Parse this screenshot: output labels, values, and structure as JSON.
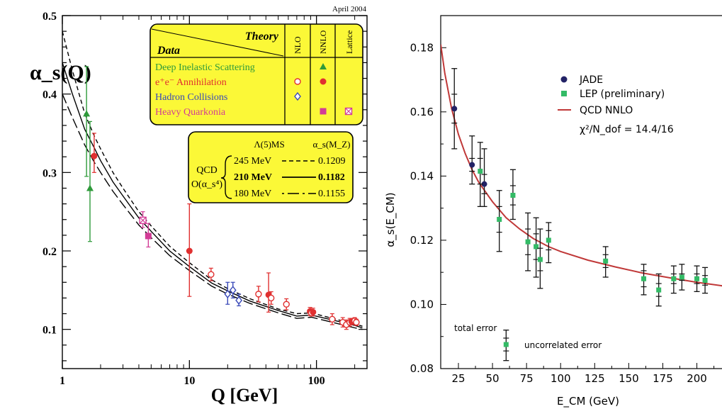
{
  "chart_data": [
    {
      "type": "scatter",
      "corner_note": "April 2004",
      "ylabel": "α_s(Q)",
      "xlabel": "Q [GeV]",
      "xscale": "log",
      "xlim": [
        1,
        250
      ],
      "ylim": [
        0.05,
        0.5
      ],
      "x_ticks": [
        1,
        10,
        100
      ],
      "x_tick_labels": [
        "1",
        "10",
        "100"
      ],
      "y_ticks": [
        0.1,
        0.2,
        0.3,
        0.4,
        0.5
      ],
      "y_tick_labels": [
        "0.1",
        "0.2",
        "0.3",
        "0.4",
        "0.5"
      ],
      "legend": {
        "placement": "top-right",
        "header_left": "Data",
        "header_right": "Theory",
        "columns": [
          "NLO",
          "NNLO",
          "Lattice"
        ],
        "rows": [
          {
            "label": "Deep Inelastic Scattering",
            "color": "#2e9a3a",
            "marks": [
              "",
              "triangle",
              ""
            ]
          },
          {
            "label": "e⁺e⁻ Annihilation",
            "color": "#e03030",
            "marks": [
              "open-circle",
              "filled-circle",
              ""
            ]
          },
          {
            "label": "Hadron Collisions",
            "color": "#3848b8",
            "marks": [
              "open-diamond",
              "",
              ""
            ]
          },
          {
            "label": "Heavy Quarkonia",
            "color": "#d23c96",
            "marks": [
              "",
              "filled-square",
              "crossed-square"
            ]
          }
        ]
      },
      "qcd_box": {
        "lambda_header": "Λ(5)MS",
        "alpha_header": "α_s(M_Z)",
        "label_1": "QCD",
        "label_2": "O(α_s⁴)",
        "rows": [
          {
            "lambda": "245 MeV",
            "alpha": "0.1209",
            "style": "dashed"
          },
          {
            "lambda": "210 MeV",
            "alpha": "0.1182",
            "style": "solid"
          },
          {
            "lambda": "180 MeV",
            "alpha": "0.1155",
            "style": "longdash"
          }
        ]
      },
      "curves": [
        {
          "name": "245 MeV",
          "style": "dashed",
          "x": [
            1.0,
            1.2,
            1.5,
            1.8,
            2.0,
            2.5,
            3.0,
            4.0,
            5.0,
            7.0,
            10.0,
            15.0,
            20.0,
            30.0,
            50.0,
            70.0,
            91.2,
            150.0,
            200.0,
            230.0
          ],
          "y": [
            0.48,
            0.43,
            0.375,
            0.345,
            0.33,
            0.3,
            0.28,
            0.25,
            0.232,
            0.206,
            0.185,
            0.163,
            0.152,
            0.139,
            0.126,
            0.12,
            0.1209,
            0.112,
            0.107,
            0.104
          ]
        },
        {
          "name": "210 MeV",
          "style": "solid",
          "x": [
            1.0,
            1.2,
            1.5,
            1.8,
            2.0,
            2.5,
            3.0,
            4.0,
            5.0,
            7.0,
            10.0,
            15.0,
            20.0,
            30.0,
            50.0,
            70.0,
            91.2,
            150.0,
            200.0,
            230.0
          ],
          "y": [
            0.44,
            0.4,
            0.355,
            0.33,
            0.315,
            0.288,
            0.27,
            0.242,
            0.225,
            0.2,
            0.18,
            0.159,
            0.149,
            0.136,
            0.124,
            0.117,
            0.1182,
            0.11,
            0.105,
            0.102
          ]
        },
        {
          "name": "180 MeV",
          "style": "longdash",
          "x": [
            1.0,
            1.2,
            1.5,
            1.8,
            2.0,
            2.5,
            3.0,
            4.0,
            5.0,
            7.0,
            10.0,
            15.0,
            20.0,
            30.0,
            50.0,
            70.0,
            91.2,
            150.0,
            200.0,
            230.0
          ],
          "y": [
            0.4,
            0.37,
            0.335,
            0.312,
            0.3,
            0.276,
            0.259,
            0.233,
            0.217,
            0.194,
            0.175,
            0.155,
            0.145,
            0.133,
            0.121,
            0.114,
            0.1155,
            0.107,
            0.102,
            0.1
          ]
        }
      ],
      "points": [
        {
          "x": 1.55,
          "y": 0.375,
          "lo": 0.295,
          "hi": 0.435,
          "color": "#2e9a3a",
          "marker": "triangle"
        },
        {
          "x": 1.65,
          "y": 0.28,
          "lo": 0.212,
          "hi": 0.365,
          "color": "#2e9a3a",
          "marker": "triangle"
        },
        {
          "x": 1.78,
          "y": 0.321,
          "lo": 0.3,
          "hi": 0.35,
          "color": "#e03030",
          "marker": "filled-circle"
        },
        {
          "x": 4.3,
          "y": 0.239,
          "lo": 0.23,
          "hi": 0.25,
          "color": "#d23c96",
          "marker": "crossed-square"
        },
        {
          "x": 4.75,
          "y": 0.219,
          "lo": 0.205,
          "hi": 0.235,
          "color": "#d23c96",
          "marker": "filled-square"
        },
        {
          "x": 10.0,
          "y": 0.2,
          "lo": 0.142,
          "hi": 0.26,
          "color": "#e03030",
          "marker": "filled-circle"
        },
        {
          "x": 14.8,
          "y": 0.17,
          "lo": 0.162,
          "hi": 0.178,
          "color": "#e03030",
          "marker": "open-circle"
        },
        {
          "x": 20.0,
          "y": 0.145,
          "lo": 0.132,
          "hi": 0.16,
          "color": "#3848b8",
          "marker": "open-diamond"
        },
        {
          "x": 22.0,
          "y": 0.15,
          "lo": 0.14,
          "hi": 0.16,
          "color": "#3848b8",
          "marker": "open-diamond"
        },
        {
          "x": 24.5,
          "y": 0.137,
          "lo": 0.13,
          "hi": 0.145,
          "color": "#3848b8",
          "marker": "open-diamond"
        },
        {
          "x": 35.0,
          "y": 0.145,
          "lo": 0.135,
          "hi": 0.155,
          "color": "#e03030",
          "marker": "open-circle"
        },
        {
          "x": 42.0,
          "y": 0.144,
          "lo": 0.122,
          "hi": 0.172,
          "color": "#e03030",
          "marker": "filled-circle"
        },
        {
          "x": 44.0,
          "y": 0.14,
          "lo": 0.132,
          "hi": 0.148,
          "color": "#e03030",
          "marker": "open-circle"
        },
        {
          "x": 58.0,
          "y": 0.132,
          "lo": 0.125,
          "hi": 0.139,
          "color": "#e03030",
          "marker": "open-circle"
        },
        {
          "x": 89.0,
          "y": 0.123,
          "lo": 0.118,
          "hi": 0.128,
          "color": "#e03030",
          "marker": "filled-circle"
        },
        {
          "x": 91.2,
          "y": 0.121,
          "lo": 0.117,
          "hi": 0.125,
          "color": "#e03030",
          "marker": "open-circle"
        },
        {
          "x": 94.0,
          "y": 0.122,
          "lo": 0.117,
          "hi": 0.127,
          "color": "#e03030",
          "marker": "filled-circle"
        },
        {
          "x": 133.0,
          "y": 0.113,
          "lo": 0.106,
          "hi": 0.12,
          "color": "#e03030",
          "marker": "open-circle"
        },
        {
          "x": 161.0,
          "y": 0.109,
          "lo": 0.103,
          "hi": 0.115,
          "color": "#e03030",
          "marker": "open-circle"
        },
        {
          "x": 172.0,
          "y": 0.106,
          "lo": 0.1,
          "hi": 0.112,
          "color": "#e03030",
          "marker": "open-circle"
        },
        {
          "x": 183.0,
          "y": 0.109,
          "lo": 0.104,
          "hi": 0.114,
          "color": "#e03030",
          "marker": "open-circle"
        },
        {
          "x": 189.0,
          "y": 0.11,
          "lo": 0.106,
          "hi": 0.114,
          "color": "#e03030",
          "marker": "filled-circle"
        },
        {
          "x": 200.0,
          "y": 0.111,
          "lo": 0.107,
          "hi": 0.115,
          "color": "#e03030",
          "marker": "open-circle"
        },
        {
          "x": 206.0,
          "y": 0.109,
          "lo": 0.105,
          "hi": 0.113,
          "color": "#e03030",
          "marker": "open-circle"
        }
      ]
    },
    {
      "type": "scatter",
      "ylabel": "α_s(E_CM)",
      "xlabel": "E_CM (GeV)",
      "xlim": [
        12,
        220
      ],
      "ylim": [
        0.08,
        0.19
      ],
      "x_ticks": [
        25,
        50,
        75,
        100,
        125,
        150,
        175,
        200
      ],
      "x_tick_labels": [
        "25",
        "50",
        "75",
        "100",
        "125",
        "150",
        "175",
        "200"
      ],
      "y_ticks": [
        0.08,
        0.1,
        0.12,
        0.14,
        0.16,
        0.18
      ],
      "y_tick_labels": [
        "0.08",
        "0.10",
        "0.12",
        "0.14",
        "0.16",
        "0.18"
      ],
      "legend": {
        "placement": "top-right",
        "items": [
          {
            "label": "JADE",
            "color": "#222266",
            "marker": "circle"
          },
          {
            "label": "LEP (preliminary)",
            "color": "#33bb66",
            "marker": "square"
          },
          {
            "label": "QCD NNLO",
            "color": "#c03838",
            "marker": "line"
          }
        ],
        "chi2_label": "χ²/N_dof = 14.4/16"
      },
      "annotation_total": "total error",
      "annotation_uncorrelated": "uncorrelated error",
      "example_point": {
        "x": 60,
        "y": 0.0875,
        "lo": 0.0825,
        "hi": 0.092,
        "inner_lo": 0.0855,
        "inner_hi": 0.0895
      },
      "series": [
        {
          "name": "JADE",
          "color": "#222266",
          "marker": "circle",
          "points": [
            {
              "x": 22.0,
              "y": 0.161,
              "lo": 0.1485,
              "hi": 0.1735,
              "inner_lo": 0.1565,
              "inner_hi": 0.1655
            },
            {
              "x": 35.0,
              "y": 0.1435,
              "lo": 0.1375,
              "hi": 0.1525,
              "inner_lo": 0.1415,
              "inner_hi": 0.1455
            },
            {
              "x": 44.0,
              "y": 0.1375,
              "lo": 0.1305,
              "hi": 0.1485,
              "inner_lo": 0.1345,
              "inner_hi": 0.1405
            }
          ]
        },
        {
          "name": "LEP (preliminary)",
          "color": "#33bb66",
          "marker": "square",
          "points": [
            {
              "x": 41.0,
              "y": 0.1415,
              "lo": 0.1305,
              "hi": 0.1505,
              "inner_lo": 0.1375,
              "inner_hi": 0.1455
            },
            {
              "x": 55.0,
              "y": 0.1265,
              "lo": 0.1165,
              "hi": 0.1355,
              "inner_lo": 0.1225,
              "inner_hi": 0.1305
            },
            {
              "x": 65.0,
              "y": 0.134,
              "lo": 0.1265,
              "hi": 0.142,
              "inner_lo": 0.131,
              "inner_hi": 0.137
            },
            {
              "x": 76.0,
              "y": 0.1195,
              "lo": 0.1105,
              "hi": 0.1285,
              "inner_lo": 0.1155,
              "inner_hi": 0.1235
            },
            {
              "x": 82.0,
              "y": 0.118,
              "lo": 0.1085,
              "hi": 0.127,
              "inner_lo": 0.114,
              "inner_hi": 0.122
            },
            {
              "x": 85.0,
              "y": 0.114,
              "lo": 0.105,
              "hi": 0.1235,
              "inner_lo": 0.1105,
              "inner_hi": 0.1175
            },
            {
              "x": 91.2,
              "y": 0.12,
              "lo": 0.113,
              "hi": 0.1255,
              "inner_lo": 0.117,
              "inner_hi": 0.123
            },
            {
              "x": 133.0,
              "y": 0.1135,
              "lo": 0.1085,
              "hi": 0.118,
              "inner_lo": 0.1115,
              "inner_hi": 0.1155
            },
            {
              "x": 161.0,
              "y": 0.108,
              "lo": 0.103,
              "hi": 0.1125,
              "inner_lo": 0.1055,
              "inner_hi": 0.1105
            },
            {
              "x": 172.0,
              "y": 0.1045,
              "lo": 0.0995,
              "hi": 0.1095,
              "inner_lo": 0.1025,
              "inner_hi": 0.1065
            },
            {
              "x": 183.0,
              "y": 0.108,
              "lo": 0.1035,
              "hi": 0.112,
              "inner_lo": 0.1065,
              "inner_hi": 0.1095
            },
            {
              "x": 189.0,
              "y": 0.1085,
              "lo": 0.1045,
              "hi": 0.1125,
              "inner_lo": 0.1075,
              "inner_hi": 0.1095
            },
            {
              "x": 200.0,
              "y": 0.108,
              "lo": 0.104,
              "hi": 0.112,
              "inner_lo": 0.1065,
              "inner_hi": 0.1095
            },
            {
              "x": 206.0,
              "y": 0.1075,
              "lo": 0.1035,
              "hi": 0.1115,
              "inner_lo": 0.106,
              "inner_hi": 0.109
            }
          ]
        }
      ],
      "curve": {
        "name": "QCD NNLO",
        "x": [
          12,
          15,
          20,
          25,
          30,
          35,
          40,
          50,
          60,
          70,
          80,
          91.2,
          100,
          120,
          140,
          160,
          180,
          200,
          220
        ],
        "y": [
          0.181,
          0.172,
          0.161,
          0.153,
          0.147,
          0.142,
          0.138,
          0.132,
          0.127,
          0.1235,
          0.1205,
          0.118,
          0.1165,
          0.1138,
          0.1117,
          0.1098,
          0.1083,
          0.1069,
          0.1057
        ]
      }
    }
  ]
}
